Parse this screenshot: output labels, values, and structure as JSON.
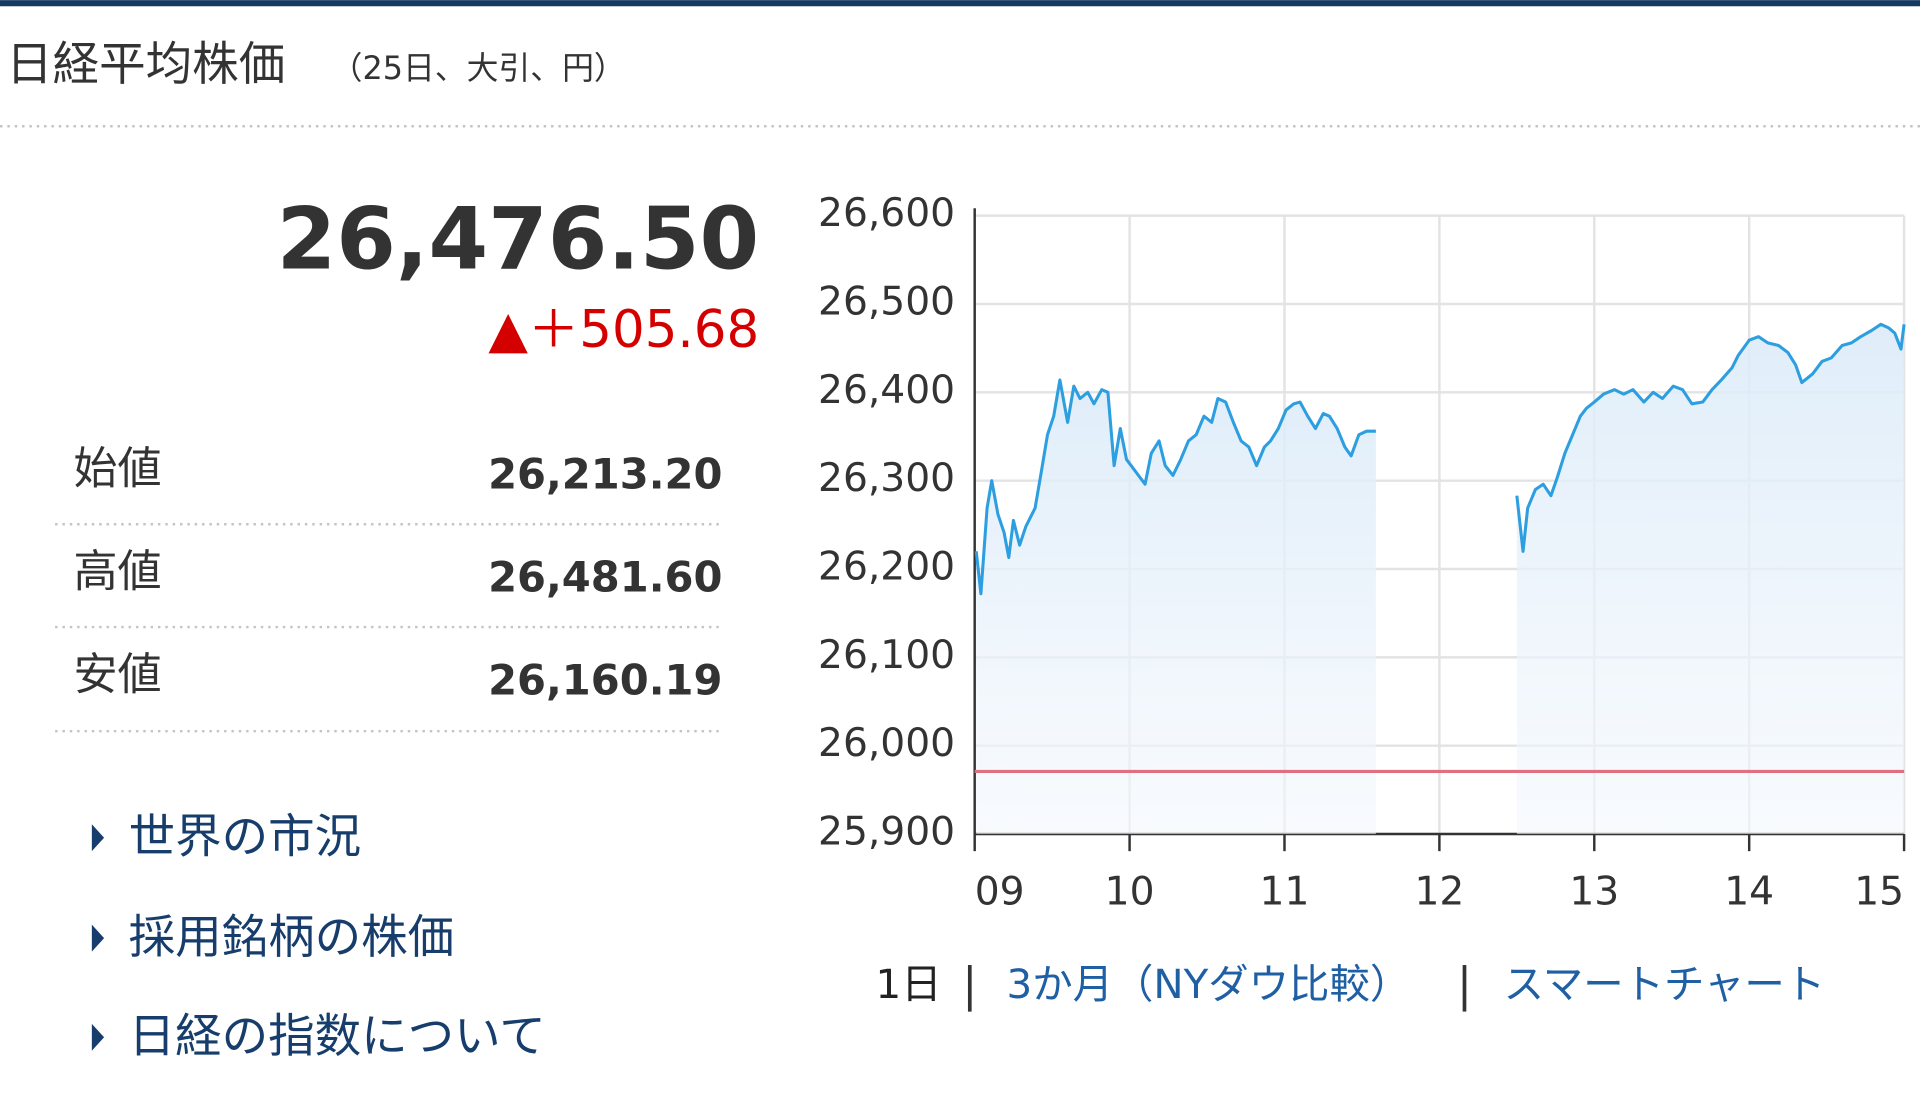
{
  "header": {
    "title": "日経平均株価",
    "subtitle": "（25日、大引、円）"
  },
  "quote": {
    "value": "26,476.50",
    "change": "▲＋505.68"
  },
  "stats": [
    {
      "label": "始値",
      "value": "26,213.20"
    },
    {
      "label": "高値",
      "value": "26,481.60"
    },
    {
      "label": "安値",
      "value": "26,160.19"
    }
  ],
  "links": [
    "世界の市況",
    "採用銘柄の株価",
    "日経の指数について"
  ],
  "chart_tabs": [
    "1日",
    "3か月（NYダウ比較）",
    "スマートチャート"
  ],
  "chart_data": {
    "type": "line",
    "x": [
      9.01,
      9.04,
      9.08,
      9.11,
      9.15,
      9.19,
      9.22,
      9.25,
      9.29,
      9.33,
      9.39,
      9.43,
      9.47,
      9.51,
      9.55,
      9.6,
      9.64,
      9.68,
      9.73,
      9.77,
      9.82,
      9.86,
      9.9,
      9.94,
      9.98,
      10.04,
      10.1,
      10.14,
      10.19,
      10.23,
      10.28,
      10.33,
      10.38,
      10.43,
      10.48,
      10.53,
      10.57,
      10.62,
      10.67,
      10.72,
      10.77,
      10.82,
      10.87,
      10.91,
      10.96,
      11.01,
      11.06,
      11.1,
      11.15,
      11.2,
      11.25,
      11.29,
      11.34,
      11.39,
      11.43,
      11.48,
      11.53,
      11.59,
      12.0,
      12.5,
      12.54,
      12.57,
      12.62,
      12.67,
      12.72,
      12.76,
      12.81,
      12.86,
      12.91,
      12.95,
      13.0,
      13.06,
      13.13,
      13.19,
      13.25,
      13.32,
      13.38,
      13.44,
      13.51,
      13.57,
      13.63,
      13.7,
      13.76,
      13.82,
      13.89,
      13.93,
      14.0,
      14.06,
      14.12,
      14.19,
      14.25,
      14.3,
      14.34,
      14.41,
      14.47,
      14.53,
      14.6,
      14.66,
      14.72,
      14.79,
      14.85,
      14.9,
      14.94,
      14.98,
      15.0
    ],
    "series": [
      {
        "color": "#2d9ee0",
        "values": [
          26220,
          26172,
          26269,
          26300,
          26262,
          26241,
          26213,
          26255,
          26227,
          26248,
          26269,
          26310,
          26352,
          26373,
          26414,
          26366,
          26407,
          26393,
          26400,
          26387,
          26403,
          26400,
          26317,
          26359,
          26324,
          26310,
          26296,
          26331,
          26345,
          26317,
          26306,
          26324,
          26345,
          26352,
          26373,
          26366,
          26393,
          26389,
          26366,
          26345,
          26338,
          26317,
          26338,
          26345,
          26359,
          26380,
          26387,
          26389,
          26373,
          26359,
          26376,
          26373,
          26359,
          26338,
          26328,
          26352,
          26356,
          26356,
          null,
          26283,
          26220,
          26269,
          26290,
          26296,
          26283,
          26303,
          26331,
          26352,
          26373,
          26382,
          26389,
          26398,
          26403,
          26398,
          26403,
          26389,
          26400,
          26393,
          26407,
          26403,
          26387,
          26389,
          26403,
          26414,
          26428,
          26442,
          26459,
          26463,
          26456,
          26453,
          26445,
          26431,
          26411,
          26421,
          26435,
          26439,
          26453,
          26456,
          26463,
          26470,
          26477,
          26473,
          26467,
          26449,
          26477
        ]
      }
    ],
    "xlim": [
      9,
      15
    ],
    "xticks": [
      {
        "value": 9,
        "label": "09"
      },
      10,
      11,
      12,
      13,
      14,
      15
    ],
    "ylim": [
      25900,
      26600
    ],
    "yticks": [
      {
        "value": 25900,
        "label": "25,900"
      },
      {
        "value": 26000,
        "label": "26,000"
      },
      {
        "value": 26100,
        "label": "26,100"
      },
      {
        "value": 26200,
        "label": "26,200"
      },
      {
        "value": 26300,
        "label": "26,300"
      },
      {
        "value": 26400,
        "label": "26,400"
      },
      {
        "value": 26500,
        "label": "26,500"
      },
      {
        "value": 26600,
        "label": "26,600"
      }
    ],
    "grid": true,
    "reference_line": 25970.82,
    "reference_color": "#e0707f"
  }
}
